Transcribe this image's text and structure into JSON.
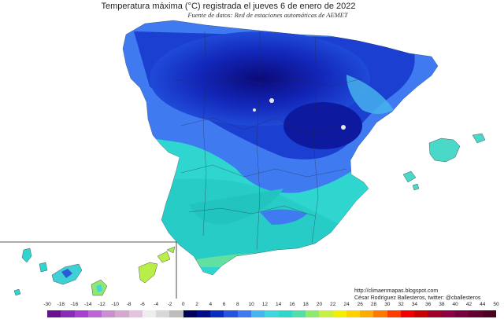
{
  "title": "Temperatura máxima (°C) registrada el jueves 6 de enero de 2022",
  "subtitle": "Fuente de datos: Red de estaciones automáticas de AEMET",
  "credits": {
    "url": "http://climaenmapas.blogspot.com",
    "author": "César Rodríguez Ballesteros, twitter: @cballesteros"
  },
  "legend": {
    "tick_labels": [
      "-30",
      "-18",
      "-16",
      "-14",
      "-12",
      "-10",
      "-8",
      "-6",
      "-4",
      "-2",
      "0",
      "2",
      "4",
      "6",
      "8",
      "10",
      "12",
      "14",
      "16",
      "18",
      "20",
      "22",
      "24",
      "26",
      "28",
      "30",
      "32",
      "34",
      "36",
      "38",
      "40",
      "42",
      "44",
      "50"
    ],
    "colors": [
      "#6a0f8e",
      "#8a2bb8",
      "#a83fd0",
      "#c063d6",
      "#c98fd0",
      "#d6a7cf",
      "#e3c4dd",
      "#eeeeee",
      "#d8d8d8",
      "#bdbdbd",
      "#00005a",
      "#000a8c",
      "#0a2cc0",
      "#2455e0",
      "#3f7af0",
      "#49b4f0",
      "#3fd6e0",
      "#2ed8c8",
      "#4ee0a8",
      "#8fe870",
      "#c8f040",
      "#f2f000",
      "#ffd200",
      "#ffaa00",
      "#ff7800",
      "#ff3c00",
      "#f00000",
      "#c80000",
      "#a00028",
      "#8c0046",
      "#780040",
      "#640030",
      "#500020"
    ]
  },
  "map": {
    "region": "Spain (Peninsula, Balearic and Canary Islands)",
    "coldest_zone_color": "#0a1aa0",
    "mild_zone_color": "#2fd8d0"
  }
}
